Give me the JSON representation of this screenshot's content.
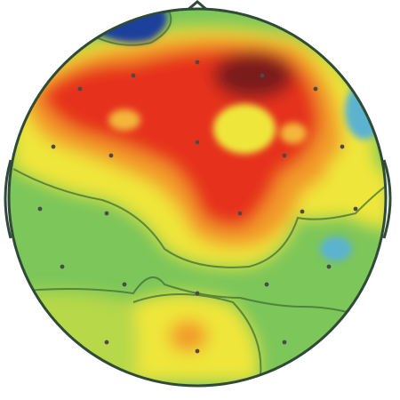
{
  "figure": {
    "kind": "scalp-topographic-map",
    "colors": {
      "deep_blue": "#1c3f9c",
      "cyan": "#5cb3cf",
      "green": "#7cc65a",
      "yellow": "#efe63a",
      "orange": "#f29a2c",
      "red": "#e6301f",
      "dark_red": "#7a1d1a",
      "outline": "#2f4a37",
      "contour": "#3f6e36",
      "electrode": "#4a4a4a"
    }
  }
}
